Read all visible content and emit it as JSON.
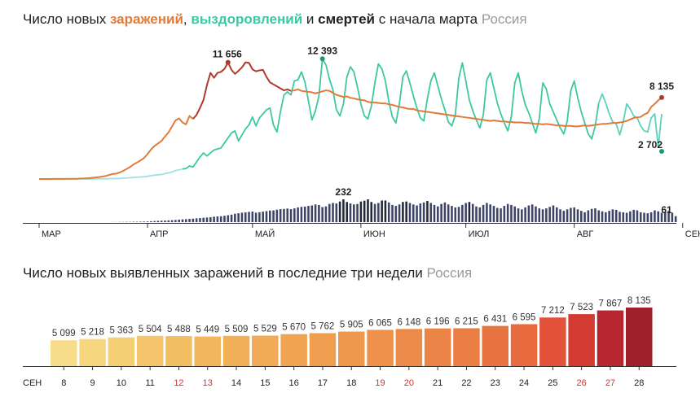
{
  "top_chart": {
    "title_parts": {
      "prefix": "Число новых ",
      "infections": "заражений",
      "sep1": ", ",
      "recoveries": "выздоровлений",
      "sep2": " и ",
      "deaths": "смертей",
      "suffix": " с начала марта",
      "region": "Россия"
    },
    "annotations": {
      "peak_infections": "11 656",
      "peak_recoveries": "12 393",
      "last_infections": "8 135",
      "last_recoveries": "2 702",
      "peak_deaths": "232",
      "last_deaths": "61"
    },
    "month_labels": [
      "МАР",
      "АПР",
      "МАЙ",
      "ИЮН",
      "ИЮЛ",
      "АВГ",
      "СЕН"
    ]
  },
  "bottom_chart": {
    "title_parts": {
      "text": "Число новых выявленных заражений в последние три недели",
      "region": "Россия"
    },
    "month_label": "СЕН"
  },
  "colors": {
    "infections": "#e07b39",
    "infections_peak": "#b03a2e",
    "recoveries": "#3cc8a0",
    "recoveries_light": "#9fe3df",
    "deaths": "#3d4466",
    "deaths_dark": "#222836"
  },
  "chart_data": [
    {
      "type": "line",
      "series": [
        {
          "name": "заражений",
          "values": [
            3,
            4,
            3,
            5,
            7,
            8,
            10,
            13,
            17,
            20,
            25,
            33,
            50,
            60,
            82,
            110,
            150,
            180,
            240,
            300,
            400,
            500,
            530,
            650,
            800,
            1000,
            1200,
            1450,
            1650,
            1850,
            2100,
            2500,
            2950,
            3300,
            3550,
            3800,
            4250,
            4650,
            5250,
            5850,
            6050,
            5650,
            5450,
            6300,
            6000,
            6400,
            7100,
            7900,
            9400,
            10600,
            10100,
            10600,
            10700,
            11000,
            11650,
            10900,
            10500,
            10800,
            11150,
            11650,
            11600,
            10950,
            10750,
            10850,
            10900,
            10200,
            9650,
            9450,
            9250,
            9050,
            8850,
            8950,
            8800,
            8850,
            8950,
            8800,
            8750,
            8700,
            8650,
            8550,
            8650,
            8750,
            8850,
            8800,
            8600,
            8400,
            8300,
            8200,
            8250,
            8100,
            8050,
            7950,
            7900,
            7850,
            7700,
            7650,
            7650,
            7600,
            7550,
            7550,
            7450,
            7400,
            7300,
            7200,
            7150,
            7050,
            7000,
            7000,
            6850,
            6800,
            6750,
            6700,
            6650,
            6600,
            6550,
            6500,
            6450,
            6400,
            6350,
            6300,
            6250,
            6200,
            6150,
            6100,
            6050,
            6000,
            5950,
            5900,
            5850,
            5800,
            5850,
            5800,
            5750,
            5750,
            5700,
            5700,
            5650,
            5650,
            5650,
            5600,
            5600,
            5550,
            5500,
            5500,
            5450,
            5500,
            5450,
            5400,
            5350,
            5350,
            5300,
            5300,
            5300,
            5250,
            5250,
            5300,
            5350,
            5300,
            5350,
            5400,
            5450,
            5500,
            5500,
            5550,
            5600,
            5600,
            5650,
            5700,
            5800,
            5950,
            6100,
            6150,
            6200,
            6450,
            6600,
            7200,
            7500,
            7850,
            8135
          ]
        },
        {
          "name": "выздоровлений",
          "values": [
            0,
            0,
            0,
            0,
            0,
            0,
            0,
            0,
            0,
            0,
            0,
            0,
            0,
            0,
            5,
            5,
            10,
            10,
            15,
            20,
            30,
            40,
            45,
            60,
            80,
            100,
            120,
            150,
            180,
            200,
            230,
            270,
            330,
            390,
            420,
            450,
            550,
            620,
            700,
            850,
            900,
            1000,
            1050,
            1300,
            1200,
            1700,
            2200,
            2600,
            2300,
            2600,
            2900,
            3000,
            3100,
            3600,
            4100,
            4600,
            4800,
            3800,
            4400,
            5000,
            5400,
            6200,
            5300,
            6100,
            6500,
            6900,
            7100,
            5400,
            4700,
            6700,
            8400,
            8700,
            8400,
            9800,
            9900,
            10700,
            9700,
            7800,
            5900,
            6800,
            8300,
            12000,
            11400,
            10000,
            8900,
            6900,
            6300,
            7500,
            10200,
            11200,
            10700,
            9200,
            7500,
            6300,
            6000,
            7300,
            9600,
            11500,
            11000,
            9800,
            7700,
            6200,
            5600,
            7500,
            10200,
            10800,
            9600,
            8300,
            7100,
            6100,
            5800,
            8000,
            9800,
            10600,
            9300,
            8000,
            6900,
            5700,
            5300,
            6400,
            10100,
            11600,
            9800,
            7900,
            6800,
            5900,
            5100,
            6400,
            9900,
            10600,
            9100,
            7600,
            6500,
            5600,
            4800,
            6200,
            9600,
            10600,
            8800,
            7400,
            6600,
            5600,
            4600,
            6000,
            9600,
            9000,
            7500,
            6700,
            5900,
            5100,
            4500,
            5800,
            8800,
            9800,
            8100,
            6700,
            5600,
            4500,
            4000,
            5300,
            7600,
            8500,
            7600,
            6500,
            5700,
            5500,
            4400,
            5700,
            7500,
            7000,
            6300,
            6100,
            5300,
            4800,
            4700,
            6100,
            6500,
            3200,
            6500,
            2702
          ]
        },
        {
          "name": "смертей",
          "values": [
            0,
            0,
            0,
            0,
            0,
            0,
            0,
            0,
            0,
            0,
            0,
            0,
            0,
            0,
            0,
            0,
            0,
            0,
            0,
            0,
            0,
            1,
            1,
            2,
            2,
            3,
            3,
            4,
            4,
            5,
            6,
            7,
            9,
            11,
            13,
            15,
            16,
            18,
            20,
            22,
            25,
            28,
            30,
            33,
            35,
            38,
            41,
            44,
            47,
            50,
            55,
            58,
            60,
            65,
            70,
            76,
            85,
            90,
            96,
            99,
            104,
            108,
            96,
            101,
            107,
            112,
            118,
            120,
            127,
            132,
            134,
            138,
            132,
            140,
            150,
            155,
            158,
            165,
            170,
            180,
            174,
            153,
            160,
            185,
            195,
            190,
            210,
            232,
            205,
            190,
            180,
            185,
            210,
            218,
            232,
            205,
            185,
            195,
            220,
            220,
            200,
            175,
            165,
            180,
            205,
            210,
            195,
            180,
            170,
            190,
            200,
            215,
            195,
            175,
            160,
            185,
            200,
            180,
            165,
            150,
            155,
            175,
            195,
            205,
            185,
            160,
            150,
            175,
            195,
            180,
            165,
            145,
            140,
            165,
            185,
            175,
            160,
            140,
            130,
            150,
            170,
            180,
            160,
            140,
            130,
            140,
            155,
            170,
            150,
            130,
            115,
            130,
            145,
            150,
            130,
            115,
            100,
            120,
            135,
            140,
            120,
            110,
            100,
            115,
            130,
            125,
            105,
            100,
            95,
            110,
            125,
            120,
            100,
            95,
            90,
            100,
            120,
            110,
            95,
            105,
            115,
            95,
            61
          ]
        }
      ],
      "ylim": [
        0,
        13000
      ]
    },
    {
      "type": "bar",
      "categories": [
        "8",
        "9",
        "10",
        "11",
        "12",
        "13",
        "14",
        "15",
        "16",
        "17",
        "18",
        "19",
        "20",
        "21",
        "22",
        "23",
        "24",
        "25",
        "26",
        "27",
        "28"
      ],
      "values": [
        5099,
        5218,
        5363,
        5504,
        5488,
        5449,
        5509,
        5529,
        5670,
        5762,
        5905,
        6065,
        6148,
        6196,
        6215,
        6431,
        6595,
        7212,
        7523,
        7867,
        8135
      ],
      "value_labels": [
        "5 099",
        "5 218",
        "5 363",
        "5 504",
        "5 488",
        "5 449",
        "5 509",
        "5 529",
        "5 670",
        "5 762",
        "5 905",
        "6 065",
        "6 148",
        "6 196",
        "6 215",
        "6 431",
        "6 595",
        "7 212",
        "7 523",
        "7 867",
        "8 135"
      ],
      "weekend_categories": [
        "12",
        "13",
        "19",
        "20",
        "26",
        "27"
      ],
      "ylim": [
        0,
        8135
      ]
    }
  ]
}
